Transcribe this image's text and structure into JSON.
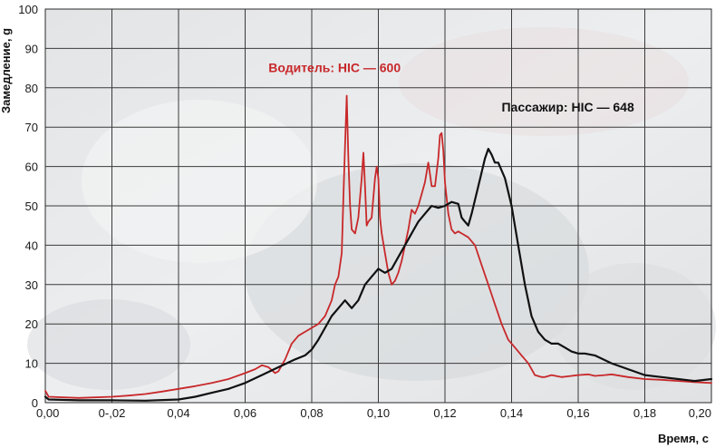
{
  "chart_data": {
    "type": "line",
    "title": "",
    "xlabel": "Время, с",
    "ylabel": "Замедление, g",
    "xlim": [
      0,
      0.2
    ],
    "ylim": [
      0,
      100
    ],
    "grid": true,
    "legend": "none",
    "x_ticks": [
      0,
      0.02,
      0.04,
      0.06,
      0.08,
      0.1,
      0.12,
      0.14,
      0.16,
      0.18,
      0.2
    ],
    "x_tick_labels": [
      "0,00",
      "0-,02",
      "0,04",
      "0,06",
      "0,08",
      "0,10",
      "0,12",
      "0,14",
      "0,16",
      "0,18",
      "0,20"
    ],
    "y_ticks": [
      0,
      10,
      20,
      30,
      40,
      50,
      60,
      70,
      80,
      90,
      100
    ],
    "y_tick_labels": [
      "0",
      "10",
      "20",
      "30",
      "40",
      "50",
      "60",
      "70",
      "80",
      "90",
      "100"
    ],
    "annotations": [
      {
        "text": "Водитель: HIC — 600",
        "color": "#c8282a",
        "x": 0.067,
        "y": 84
      },
      {
        "text": "Пассажир: HIC — 648",
        "color": "#111111",
        "x": 0.137,
        "y": 74
      }
    ],
    "series": [
      {
        "color": "#c8282a",
        "x": [
          0,
          0.001,
          0.01,
          0.02,
          0.025,
          0.03,
          0.035,
          0.04,
          0.045,
          0.05,
          0.055,
          0.06,
          0.063,
          0.065,
          0.067,
          0.069,
          0.07,
          0.072,
          0.074,
          0.076,
          0.078,
          0.08,
          0.082,
          0.084,
          0.086,
          0.087,
          0.088,
          0.089,
          0.0895,
          0.09,
          0.0905,
          0.091,
          0.0915,
          0.092,
          0.093,
          0.094,
          0.095,
          0.0955,
          0.096,
          0.0965,
          0.097,
          0.098,
          0.099,
          0.0995,
          0.1,
          0.1005,
          0.101,
          0.102,
          0.103,
          0.104,
          0.105,
          0.106,
          0.107,
          0.108,
          0.109,
          0.11,
          0.111,
          0.112,
          0.113,
          0.114,
          0.115,
          0.1155,
          0.116,
          0.117,
          0.118,
          0.1185,
          0.119,
          0.1195,
          0.12,
          0.121,
          0.122,
          0.123,
          0.124,
          0.125,
          0.127,
          0.129,
          0.131,
          0.133,
          0.135,
          0.137,
          0.139,
          0.141,
          0.143,
          0.145,
          0.147,
          0.149,
          0.15,
          0.152,
          0.155,
          0.158,
          0.16,
          0.163,
          0.165,
          0.168,
          0.17,
          0.175,
          0.18,
          0.185,
          0.19,
          0.195,
          0.2
        ],
        "values": [
          3,
          1.5,
          1.2,
          1.5,
          1.8,
          2.2,
          2.8,
          3.5,
          4.2,
          5,
          6,
          7.5,
          8.5,
          9.5,
          9,
          7.5,
          8,
          11,
          15,
          17,
          18,
          19,
          20,
          22,
          26,
          30,
          32,
          38,
          52,
          65,
          78,
          62,
          50,
          44,
          43,
          47,
          57,
          63.5,
          55,
          45,
          46,
          47,
          57,
          60,
          57,
          47,
          43,
          38,
          33,
          30,
          31,
          33,
          36,
          40,
          44,
          49,
          48,
          50,
          53,
          56,
          61,
          58,
          55,
          55,
          62,
          68,
          68.5,
          64,
          56,
          48,
          44,
          43,
          43.5,
          43,
          42,
          40,
          35,
          30,
          25,
          20,
          16,
          14,
          12,
          10,
          7,
          6.5,
          6.5,
          7,
          6.5,
          6.8,
          7,
          7.2,
          6.8,
          7,
          7.2,
          6.5,
          6,
          5.8,
          5.5,
          5.2,
          5
        ]
      },
      {
        "color": "#111111",
        "x": [
          0,
          0.001,
          0.01,
          0.02,
          0.03,
          0.04,
          0.045,
          0.05,
          0.055,
          0.06,
          0.065,
          0.07,
          0.075,
          0.078,
          0.08,
          0.082,
          0.084,
          0.086,
          0.088,
          0.09,
          0.091,
          0.092,
          0.094,
          0.096,
          0.098,
          0.1,
          0.102,
          0.104,
          0.106,
          0.108,
          0.11,
          0.112,
          0.114,
          0.116,
          0.118,
          0.12,
          0.122,
          0.124,
          0.125,
          0.126,
          0.127,
          0.128,
          0.13,
          0.132,
          0.133,
          0.134,
          0.135,
          0.136,
          0.138,
          0.14,
          0.142,
          0.144,
          0.146,
          0.148,
          0.15,
          0.152,
          0.154,
          0.156,
          0.158,
          0.16,
          0.162,
          0.165,
          0.17,
          0.175,
          0.18,
          0.185,
          0.19,
          0.195,
          0.2
        ],
        "values": [
          1.5,
          0.8,
          0.6,
          0.6,
          0.5,
          0.8,
          1.5,
          2.5,
          3.5,
          5,
          7,
          9,
          11,
          12,
          13.5,
          16,
          19,
          22,
          24,
          26,
          25,
          24,
          26,
          30,
          32,
          34,
          33,
          34,
          37,
          40,
          43,
          46,
          48,
          50,
          49.5,
          50,
          51,
          50.5,
          47,
          46,
          45,
          48,
          55,
          62,
          64.5,
          63,
          61,
          61,
          57,
          50,
          40,
          30,
          22,
          18,
          16,
          15,
          15,
          14,
          13,
          12.5,
          12.5,
          12,
          10,
          8.5,
          7,
          6.5,
          6,
          5.5,
          6
        ]
      }
    ]
  }
}
